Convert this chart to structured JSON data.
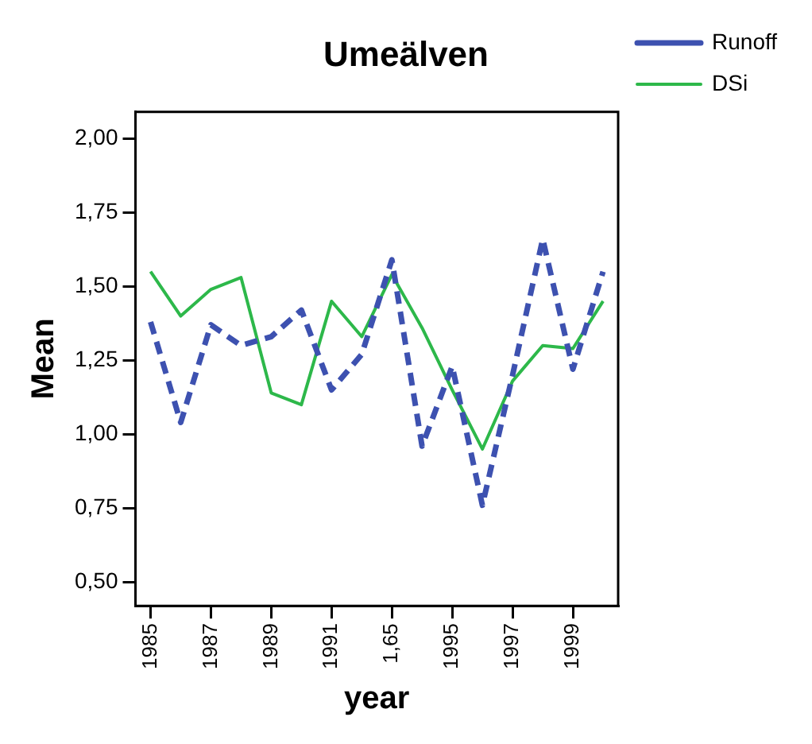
{
  "chart_data": {
    "type": "line",
    "title": "Umeälven",
    "xlabel": "year",
    "ylabel": "Mean",
    "categories": [
      "1985",
      null,
      "1987",
      null,
      "1989",
      null,
      "1991",
      null,
      "1,65",
      null,
      "1995",
      null,
      "1997",
      null,
      "1999",
      null
    ],
    "series": [
      {
        "name": "Runoff",
        "color": "#3d51b0",
        "line_style": "dashed",
        "values": [
          1.38,
          1.04,
          1.37,
          1.3,
          1.33,
          1.42,
          1.15,
          1.27,
          1.59,
          0.96,
          1.23,
          0.76,
          1.2,
          1.66,
          1.22,
          1.55
        ]
      },
      {
        "name": "DSi",
        "color": "#2db84a",
        "line_style": "solid",
        "values": [
          1.55,
          1.4,
          1.49,
          1.53,
          1.14,
          1.1,
          1.45,
          1.33,
          1.54,
          1.36,
          1.15,
          0.95,
          1.18,
          1.3,
          1.29,
          1.45
        ]
      }
    ],
    "ylim": [
      0.42,
      2.09
    ],
    "yticks": [
      {
        "value": 0.5,
        "label": "0,50"
      },
      {
        "value": 0.75,
        "label": "0,75"
      },
      {
        "value": 1.0,
        "label": "1,00"
      },
      {
        "value": 1.25,
        "label": "1,25"
      },
      {
        "value": 1.5,
        "label": "1,50"
      },
      {
        "value": 1.75,
        "label": "1,75"
      },
      {
        "value": 2.0,
        "label": "2,00"
      }
    ],
    "grid": false,
    "legend": "top right",
    "marker": "none"
  }
}
